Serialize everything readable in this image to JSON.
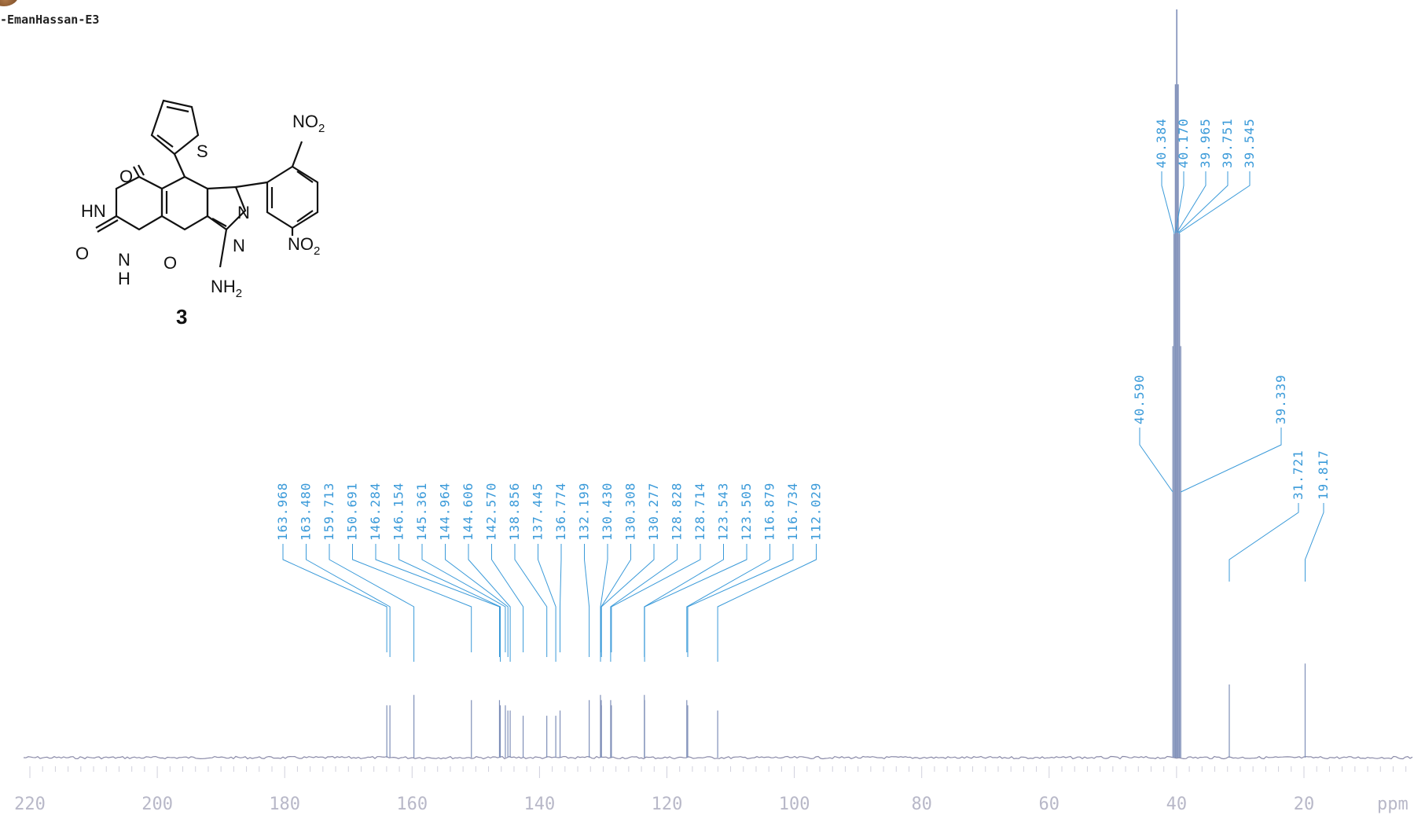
{
  "sample_label": "-EmanHassan-E3",
  "structure": {
    "compound_number": "3",
    "atoms": {
      "no2_top": "NO2",
      "no2_bottom": "NO2",
      "nh2": "NH2",
      "hn": "HN",
      "o_carbonyl_top": "O",
      "o_carbonyl_left": "O",
      "n_ring": "N",
      "h_ring": "H",
      "o_pyran": "O",
      "s_thiophene": "S",
      "n_pyrazole_1": "N",
      "n_pyrazole_2": "N"
    }
  },
  "colors": {
    "peak_line": "#7f8fb8",
    "label_text": "#3a9ad9",
    "baseline": "#8a8aa8",
    "axis_label": "#b8b8c8"
  },
  "chart_data": {
    "type": "line",
    "title": "",
    "xlabel": "ppm",
    "ylabel": "",
    "x_axis_reversed": true,
    "xlim": [
      220,
      0
    ],
    "x_ticks": [
      "220",
      "200",
      "180",
      "160",
      "140",
      "120",
      "100",
      "80",
      "60",
      "40",
      "20"
    ],
    "x_unit_label": "ppm",
    "peaks": [
      {
        "shift": 163.968,
        "label": "163.968",
        "group": 0,
        "intensity": 0.04
      },
      {
        "shift": 163.48,
        "label": "163.480",
        "group": 0,
        "intensity": 0.04
      },
      {
        "shift": 159.713,
        "label": "159.713",
        "group": 0,
        "intensity": 0.06
      },
      {
        "shift": 150.691,
        "label": "150.691",
        "group": 0,
        "intensity": 0.05
      },
      {
        "shift": 146.284,
        "label": "146.284",
        "group": 0,
        "intensity": 0.05
      },
      {
        "shift": 146.154,
        "label": "146.154",
        "group": 0,
        "intensity": 0.04
      },
      {
        "shift": 145.361,
        "label": "145.361",
        "group": 0,
        "intensity": 0.04
      },
      {
        "shift": 144.964,
        "label": "144.964",
        "group": 0,
        "intensity": 0.03
      },
      {
        "shift": 144.606,
        "label": "144.606",
        "group": 0,
        "intensity": 0.03
      },
      {
        "shift": 142.57,
        "label": "142.570",
        "group": 0,
        "intensity": 0.02
      },
      {
        "shift": 138.856,
        "label": "138.856",
        "group": 0,
        "intensity": 0.02
      },
      {
        "shift": 137.445,
        "label": "137.445",
        "group": 0,
        "intensity": 0.02
      },
      {
        "shift": 136.774,
        "label": "136.774",
        "group": 0,
        "intensity": 0.03
      },
      {
        "shift": 132.199,
        "label": "132.199",
        "group": 0,
        "intensity": 0.05
      },
      {
        "shift": 130.43,
        "label": "130.430",
        "group": 0,
        "intensity": 0.06
      },
      {
        "shift": 130.308,
        "label": "130.308",
        "group": 0,
        "intensity": 0.05
      },
      {
        "shift": 130.277,
        "label": "130.277",
        "group": 0,
        "intensity": 0.04
      },
      {
        "shift": 128.828,
        "label": "128.828",
        "group": 0,
        "intensity": 0.05
      },
      {
        "shift": 128.714,
        "label": "128.714",
        "group": 0,
        "intensity": 0.04
      },
      {
        "shift": 123.543,
        "label": "123.543",
        "group": 0,
        "intensity": 0.06
      },
      {
        "shift": 123.505,
        "label": "123.505",
        "group": 0,
        "intensity": 0.05
      },
      {
        "shift": 116.879,
        "label": "116.879",
        "group": 0,
        "intensity": 0.05
      },
      {
        "shift": 116.734,
        "label": "116.734",
        "group": 0,
        "intensity": 0.04
      },
      {
        "shift": 112.029,
        "label": "112.029",
        "group": 0,
        "intensity": 0.03
      },
      {
        "shift": 40.59,
        "label": "40.590",
        "group": 1,
        "intensity": 0.4
      },
      {
        "shift": 40.384,
        "label": "40.384",
        "group": 2,
        "intensity": 0.7
      },
      {
        "shift": 40.17,
        "label": "40.170",
        "group": 2,
        "intensity": 0.9
      },
      {
        "shift": 39.965,
        "label": "39.965",
        "group": 2,
        "intensity": 1.0
      },
      {
        "shift": 39.751,
        "label": "39.751",
        "group": 2,
        "intensity": 0.9
      },
      {
        "shift": 39.545,
        "label": "39.545",
        "group": 2,
        "intensity": 0.7
      },
      {
        "shift": 39.339,
        "label": "39.339",
        "group": 1,
        "intensity": 0.4
      },
      {
        "shift": 31.721,
        "label": "31.721",
        "group": 3,
        "intensity": 0.08
      },
      {
        "shift": 19.817,
        "label": "19.817",
        "group": 3,
        "intensity": 0.12
      }
    ]
  }
}
